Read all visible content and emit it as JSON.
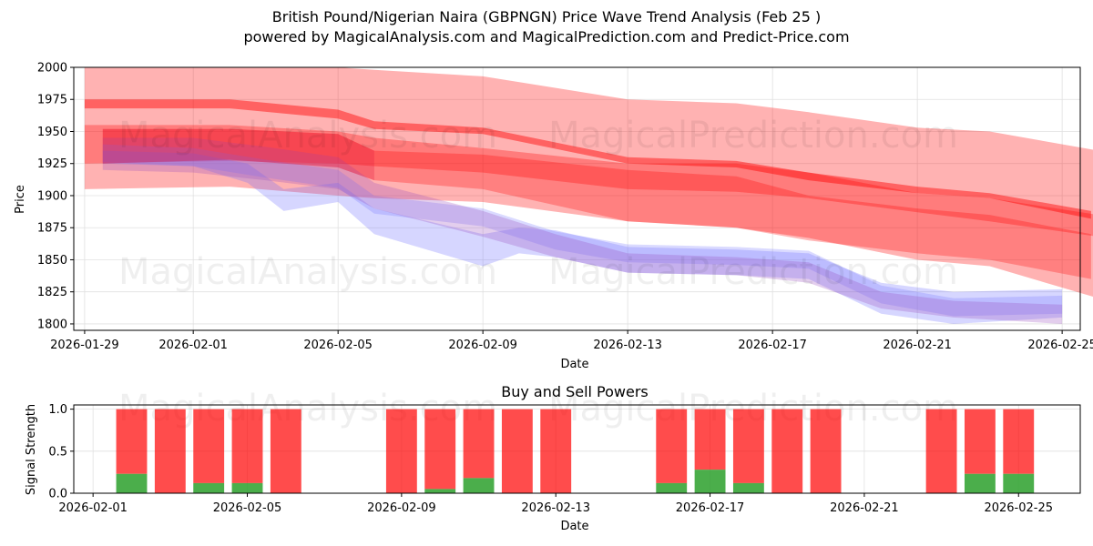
{
  "title": {
    "line1": "British Pound/Nigerian Naira (GBPNGN) Price Wave Trend Analysis (Feb 25 )",
    "line2": "powered by MagicalAnalysis.com and MagicalPrediction.com and Predict-Price.com"
  },
  "watermarks": {
    "a": "MagicalAnalysis.com",
    "b": "MagicalPrediction.com"
  },
  "colors": {
    "red": "#ff0000",
    "blue": "#0000ff",
    "buy": "#2ca02c",
    "sell": "#ff0000",
    "grid": "#e0e0e0"
  },
  "chart_data": [
    {
      "type": "area",
      "title": "",
      "xlabel": "Date",
      "ylabel": "Price",
      "ylim": [
        1795,
        2000
      ],
      "xlim": [
        -0.3,
        27.5
      ],
      "x_ticks": [
        {
          "x": 0,
          "label": "2026-01-29"
        },
        {
          "x": 3,
          "label": "2026-02-01"
        },
        {
          "x": 7,
          "label": "2026-02-05"
        },
        {
          "x": 11,
          "label": "2026-02-09"
        },
        {
          "x": 15,
          "label": "2026-02-13"
        },
        {
          "x": 19,
          "label": "2026-02-17"
        },
        {
          "x": 23,
          "label": "2026-02-21"
        },
        {
          "x": 27,
          "label": "2026-02-25"
        }
      ],
      "y_ticks": [
        1800,
        1825,
        1850,
        1875,
        1900,
        1925,
        1950,
        1975,
        2000
      ],
      "grid": true,
      "x_note": "x = days since 2026-01-29",
      "red_bands": [
        {
          "name": "red-wide-upper",
          "x": [
            0,
            4,
            7,
            8,
            11,
            15,
            18,
            20,
            23,
            25,
            28
          ],
          "upper": [
            2000,
            2000,
            2000,
            1998,
            1993,
            1975,
            1972,
            1965,
            1953,
            1950,
            1935
          ],
          "lower": [
            1925,
            1927,
            1925,
            1923,
            1918,
            1905,
            1903,
            1898,
            1887,
            1880,
            1868
          ]
        },
        {
          "name": "red-wide-lower",
          "x": [
            0,
            4,
            7,
            8,
            11,
            15,
            18,
            20,
            23,
            25,
            28
          ],
          "upper": [
            1955,
            1955,
            1950,
            1945,
            1937,
            1925,
            1925,
            1918,
            1902,
            1898,
            1885
          ],
          "lower": [
            1905,
            1907,
            1900,
            1898,
            1895,
            1880,
            1875,
            1867,
            1850,
            1845,
            1820
          ]
        },
        {
          "name": "red-mid",
          "x": [
            0,
            4,
            7,
            8,
            11,
            15,
            18,
            20,
            23,
            25,
            27.8
          ],
          "upper": [
            1975,
            1975,
            1967,
            1958,
            1953,
            1930,
            1927,
            1918,
            1907,
            1902,
            1888
          ],
          "lower": [
            1968,
            1968,
            1960,
            1952,
            1948,
            1925,
            1922,
            1912,
            1902,
            1898,
            1882
          ]
        },
        {
          "name": "red-inner",
          "x": [
            0.5,
            4,
            7,
            8,
            11,
            15,
            18,
            20,
            23,
            25,
            27.8
          ],
          "upper": [
            1952,
            1952,
            1948,
            1935,
            1932,
            1920,
            1915,
            1900,
            1890,
            1885,
            1870
          ],
          "lower": [
            1925,
            1928,
            1922,
            1912,
            1905,
            1880,
            1875,
            1865,
            1855,
            1850,
            1835
          ]
        }
      ],
      "blue_bands": [
        {
          "name": "blue-1",
          "x": [
            0.5,
            3,
            4.5,
            5.5,
            7,
            8,
            11,
            12,
            13,
            15,
            18,
            20,
            22,
            24,
            27
          ],
          "upper": [
            1935,
            1933,
            1925,
            1905,
            1910,
            1890,
            1870,
            1875,
            1873,
            1860,
            1858,
            1855,
            1832,
            1825,
            1827
          ],
          "lower": [
            1925,
            1923,
            1910,
            1888,
            1895,
            1870,
            1845,
            1855,
            1852,
            1840,
            1838,
            1835,
            1808,
            1800,
            1805
          ]
        },
        {
          "name": "blue-2",
          "x": [
            0.5,
            3,
            5,
            7,
            8,
            11,
            13,
            15,
            18,
            20,
            22,
            24,
            27
          ],
          "upper": [
            1940,
            1937,
            1928,
            1920,
            1900,
            1890,
            1872,
            1862,
            1860,
            1857,
            1830,
            1820,
            1822
          ]
        },
        {
          "name": "purple-3",
          "x": [
            0.5,
            3,
            5,
            7,
            8,
            11,
            13,
            15,
            18,
            20,
            22,
            24,
            27
          ],
          "upper": [
            1945,
            1945,
            1938,
            1930,
            1910,
            1888,
            1870,
            1855,
            1852,
            1848,
            1825,
            1818,
            1815
          ],
          "lower": [
            1920,
            1918,
            1912,
            1905,
            1890,
            1868,
            1852,
            1840,
            1838,
            1832,
            1812,
            1805,
            1800
          ]
        }
      ]
    },
    {
      "type": "bar",
      "title": "Buy and Sell Powers",
      "xlabel": "Date",
      "ylabel": "Signal Strength",
      "ylim": [
        0,
        1.05
      ],
      "xlim": [
        -0.5,
        25.6
      ],
      "y_ticks": [
        {
          "v": 0,
          "label": "0.0"
        },
        {
          "v": 0.5,
          "label": "0.5"
        },
        {
          "v": 1,
          "label": "1.0"
        }
      ],
      "x_ticks": [
        {
          "x": 0,
          "label": "2026-02-01"
        },
        {
          "x": 4,
          "label": "2026-02-05"
        },
        {
          "x": 8,
          "label": "2026-02-09"
        },
        {
          "x": 12,
          "label": "2026-02-13"
        },
        {
          "x": 16,
          "label": "2026-02-17"
        },
        {
          "x": 20,
          "label": "2026-02-21"
        },
        {
          "x": 24,
          "label": "2026-02-25"
        }
      ],
      "x_note": "x = days since 2026-02-01",
      "grid": true,
      "bars": [
        {
          "x": 1,
          "buy": 0.23,
          "total": 1
        },
        {
          "x": 2,
          "buy": 0,
          "total": 1
        },
        {
          "x": 3,
          "buy": 0.12,
          "total": 1
        },
        {
          "x": 4,
          "buy": 0.12,
          "total": 1
        },
        {
          "x": 5,
          "buy": 0,
          "total": 1
        },
        {
          "x": 8,
          "buy": 0,
          "total": 1
        },
        {
          "x": 9,
          "buy": 0.05,
          "total": 1
        },
        {
          "x": 10,
          "buy": 0.18,
          "total": 1
        },
        {
          "x": 11,
          "buy": 0,
          "total": 1
        },
        {
          "x": 12,
          "buy": 0,
          "total": 1
        },
        {
          "x": 15,
          "buy": 0.12,
          "total": 1
        },
        {
          "x": 16,
          "buy": 0.28,
          "total": 1
        },
        {
          "x": 17,
          "buy": 0.12,
          "total": 1
        },
        {
          "x": 18,
          "buy": 0,
          "total": 1
        },
        {
          "x": 19,
          "buy": 0,
          "total": 1
        },
        {
          "x": 22,
          "buy": 0,
          "total": 1
        },
        {
          "x": 23,
          "buy": 0.23,
          "total": 1
        },
        {
          "x": 24,
          "buy": 0.23,
          "total": 1
        }
      ]
    }
  ]
}
